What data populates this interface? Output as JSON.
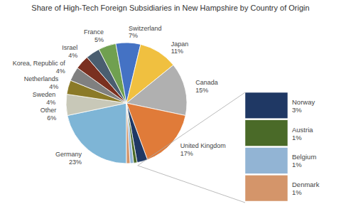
{
  "chart_data": {
    "type": "pie",
    "title": "Share of High-Tech Foreign Subsidiaries in New Hampshire by Country of Origin",
    "categories": [
      "Germany",
      "Other",
      "Sweden",
      "Netherlands",
      "Korea, Republic of",
      "Israel",
      "France",
      "Switzerland",
      "Japan",
      "Canada",
      "United Kingdom",
      "Norway",
      "Austria",
      "Belgium",
      "Denmark"
    ],
    "values": [
      23,
      6,
      4,
      4,
      4,
      4,
      5,
      7,
      11,
      15,
      17,
      3,
      1,
      1,
      1
    ],
    "value_labels": [
      "23%",
      "6%",
      "4%",
      "4%",
      "4%",
      "4%",
      "5%",
      "7%",
      "11%",
      "15%",
      "17%",
      "3%",
      "1%",
      "1%",
      "1%"
    ],
    "colors": [
      "#7eb5d6",
      "#c8c8b8",
      "#8b7a28",
      "#808080",
      "#7a3020",
      "#4a5e70",
      "#70a050",
      "#4472c4",
      "#f0c040",
      "#b0b0b0",
      "#e07b39",
      "#1f3864",
      "#4a6a28",
      "#92b4d4",
      "#d4956a"
    ],
    "data_labels": true,
    "legend": "right"
  }
}
